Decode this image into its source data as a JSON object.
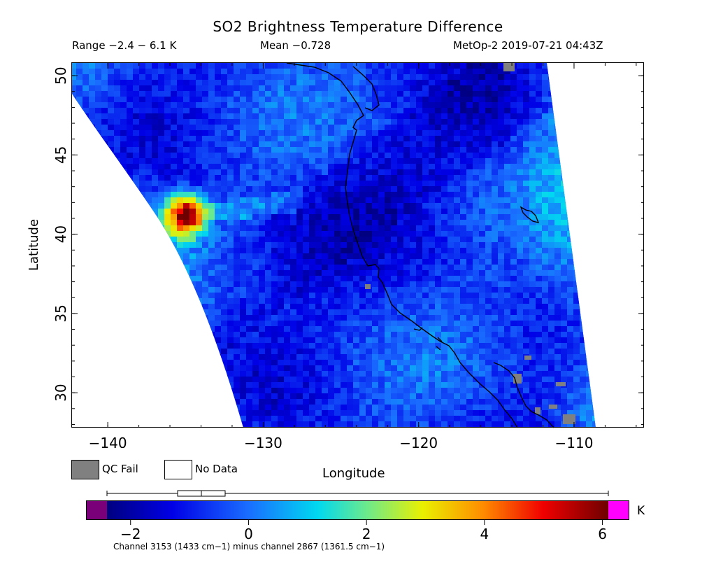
{
  "header": {
    "title": "SO2 Brightness Temperature Difference",
    "range": "Range −2.4 − 6.1 K",
    "mean": "Mean −0.728",
    "satellite_time": "MetOp-2 2019-07-21 04:43Z"
  },
  "map": {
    "y_axis_label": "Latitude",
    "x_axis_label": "Longitude",
    "lat_ticks": [
      "30",
      "35",
      "40",
      "45",
      "50"
    ],
    "lon_ticks": [
      "−140",
      "−130",
      "−120",
      "−110"
    ],
    "lat_range": [
      27.8,
      50.8
    ],
    "lon_range": [
      -142.3,
      -105.5
    ],
    "field_mean_k": -0.728,
    "hotspot": {
      "lat": 41.2,
      "lon": -135.1,
      "peak_k": 6.1
    },
    "colors": {
      "qc_fail": "#808080",
      "no_data": "#ffffff",
      "coast": "#000000"
    }
  },
  "legend": {
    "qc_fail_label": "QC Fail",
    "no_data_label": "No Data"
  },
  "colorbar": {
    "unit": "K",
    "ticks": [
      "−2",
      "0",
      "2",
      "4",
      "6"
    ],
    "tick_values": [
      -2,
      0,
      2,
      4,
      6
    ],
    "range": [
      -2.4,
      6.1
    ],
    "below_color": "#7a007a",
    "above_color": "#ff00ff",
    "box_plot": {
      "min": -2.4,
      "q1": -1.2,
      "median": -0.8,
      "q3": -0.4,
      "max": 6.1
    },
    "footnote": "Channel 3153 (1433 cm−1) minus channel 2867 (1361.5 cm−1)"
  }
}
